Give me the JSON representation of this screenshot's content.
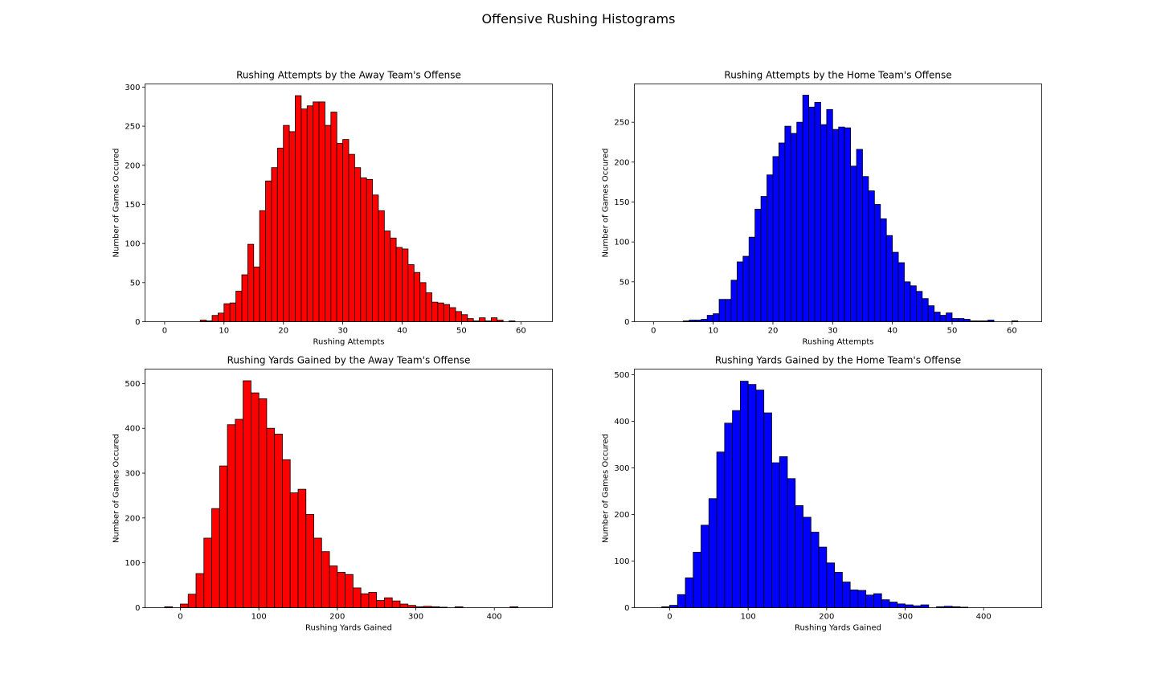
{
  "figure": {
    "suptitle": "Offensive Rushing Histograms"
  },
  "chart_data": [
    {
      "type": "bar",
      "subtype": "histogram",
      "title": "Rushing Attempts by the Away Team's Offense",
      "xlabel": "Rushing Attempts",
      "ylabel": "Number of Games Occured",
      "color": "#ff0000",
      "edgecolor": "#000000",
      "xlim": [
        -3.3,
        65.3
      ],
      "ylim": [
        0,
        304
      ],
      "xticks": [
        0,
        10,
        20,
        30,
        40,
        50,
        60
      ],
      "yticks": [
        0,
        50,
        100,
        150,
        200,
        250,
        300
      ],
      "bin_width": 1,
      "bin_start": 6,
      "values": [
        2,
        1,
        8,
        11,
        23,
        24,
        39,
        60,
        99,
        70,
        142,
        180,
        197,
        222,
        251,
        243,
        289,
        272,
        276,
        281,
        281,
        251,
        268,
        228,
        233,
        214,
        197,
        184,
        182,
        162,
        142,
        116,
        107,
        95,
        93,
        73,
        63,
        50,
        37,
        25,
        24,
        22,
        18,
        13,
        9,
        4,
        1,
        5,
        1,
        5,
        2,
        0,
        1
      ]
    },
    {
      "type": "bar",
      "subtype": "histogram",
      "title": "Rushing Attempts by the Home Team's Offense",
      "xlabel": "Rushing Attempts",
      "ylabel": "Number of Games Occured",
      "color": "#0000ff",
      "edgecolor": "#000000",
      "xlim": [
        -3.2,
        65
      ],
      "ylim": [
        0,
        298
      ],
      "xticks": [
        0,
        10,
        20,
        30,
        40,
        50,
        60
      ],
      "yticks": [
        0,
        50,
        100,
        150,
        200,
        250
      ],
      "bin_width": 1,
      "bin_start": 5,
      "values": [
        1,
        2,
        2,
        3,
        8,
        10,
        28,
        28,
        52,
        75,
        82,
        106,
        141,
        157,
        184,
        207,
        224,
        245,
        236,
        250,
        284,
        269,
        275,
        247,
        266,
        241,
        244,
        243,
        195,
        216,
        182,
        164,
        147,
        129,
        108,
        87,
        74,
        50,
        45,
        38,
        29,
        20,
        12,
        8,
        11,
        4,
        4,
        3,
        1,
        1,
        1,
        2,
        0,
        0,
        0,
        1
      ]
    },
    {
      "type": "bar",
      "subtype": "histogram",
      "title": "Rushing Yards Gained by the Away Team's Offense",
      "xlabel": "Rushing Yards Gained",
      "ylabel": "Number of Games Occured",
      "color": "#ff0000",
      "edgecolor": "#000000",
      "xlim": [
        -45,
        474
      ],
      "ylim": [
        0,
        532
      ],
      "xticks": [
        0,
        100,
        200,
        300,
        400
      ],
      "yticks": [
        0,
        100,
        200,
        300,
        400,
        500
      ],
      "bin_width": 10,
      "bin_start": -20,
      "values": [
        2,
        0,
        8,
        30,
        76,
        155,
        221,
        316,
        408,
        420,
        506,
        479,
        466,
        400,
        387,
        330,
        256,
        264,
        208,
        155,
        125,
        93,
        79,
        74,
        44,
        31,
        34,
        16,
        22,
        15,
        8,
        5,
        2,
        3,
        2,
        1,
        0,
        2,
        0,
        0,
        0,
        0,
        0,
        0,
        2
      ]
    },
    {
      "type": "bar",
      "subtype": "histogram",
      "title": "Rushing Yards Gained by the Home Team's Offense",
      "xlabel": "Rushing Yards Gained",
      "ylabel": "Number of Games Occured",
      "color": "#0000ff",
      "edgecolor": "#000000",
      "xlim": [
        -45,
        474
      ],
      "ylim": [
        0,
        512
      ],
      "xticks": [
        0,
        100,
        200,
        300,
        400
      ],
      "yticks": [
        0,
        100,
        200,
        300,
        400,
        500
      ],
      "bin_width": 10,
      "bin_start": -10,
      "values": [
        2,
        5,
        28,
        64,
        119,
        177,
        234,
        334,
        396,
        423,
        486,
        479,
        467,
        418,
        311,
        324,
        277,
        219,
        194,
        162,
        130,
        96,
        76,
        55,
        38,
        37,
        27,
        30,
        17,
        12,
        8,
        6,
        4,
        6,
        0,
        2,
        3,
        2,
        1
      ]
    }
  ]
}
